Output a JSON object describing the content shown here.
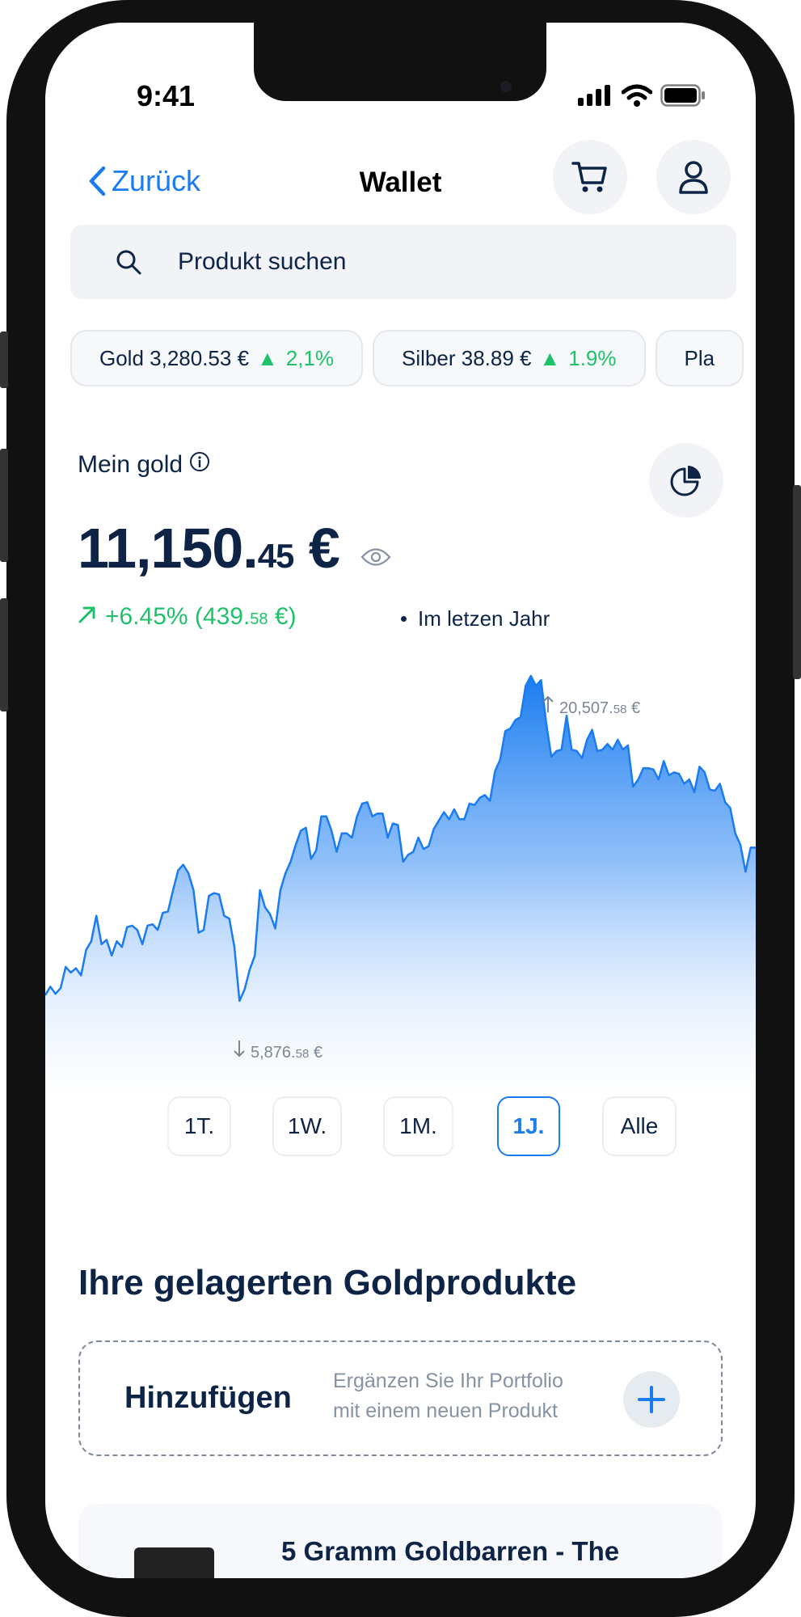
{
  "status_bar": {
    "time": "9:41"
  },
  "nav": {
    "back_label": "Zurück",
    "title": "Wallet",
    "cart_icon": "cart-icon",
    "profile_icon": "user-icon"
  },
  "search": {
    "placeholder": "Produkt suchen",
    "value": ""
  },
  "tickers": [
    {
      "label": "Gold 3,280.53 €",
      "change": "2,1%"
    },
    {
      "label": "Silber 38.89 €",
      "change": "1.9%"
    },
    {
      "label": "Pla"
    }
  ],
  "wallet": {
    "label": "Mein gold",
    "value_main": "11,150.",
    "value_cents": "45",
    "value_currency": " €",
    "change_pct": "+6.45% (439.",
    "change_cents": "58",
    "change_tail": " €)",
    "period": "Im letzen Jahr"
  },
  "colors": {
    "navy": "#0d2447",
    "green": "#1fc26b",
    "blue": "#1a7cf0"
  },
  "chart_data": {
    "type": "area",
    "max_label": {
      "main": "20,507.",
      "cents": "58",
      "currency": " €"
    },
    "min_label": {
      "main": "5,876.",
      "cents": "58",
      "currency": " €"
    },
    "ylim": [
      5876.58,
      20507.58
    ],
    "values": [
      6132,
      6516,
      6196,
      6452,
      7410,
      7155,
      7347,
      7027,
      8177,
      8561,
      9711,
      8433,
      8625,
      7922,
      8561,
      8305,
      9200,
      9264,
      9072,
      8433,
      9264,
      9328,
      9072,
      9839,
      9903,
      10861,
      11756,
      12011,
      11628,
      10861,
      8944,
      9072,
      10606,
      10733,
      10669,
      9711,
      9583,
      8305,
      5877,
      6388,
      7283,
      7922,
      10861,
      10094,
      9775,
      9136,
      10861,
      11628,
      12139,
      12906,
      13545,
      13673,
      12267,
      12650,
      14184,
      14184,
      13545,
      12587,
      13417,
      13417,
      13226,
      14184,
      14759,
      14823,
      14184,
      14312,
      14312,
      13226,
      13865,
      13801,
      12139,
      12458,
      12587,
      13226,
      12714,
      12842,
      13609,
      13992,
      14376,
      14056,
      14503,
      14056,
      14056,
      14759,
      14695,
      15014,
      15143,
      14887,
      16229,
      16740,
      18018,
      18146,
      18529,
      18657,
      20063,
      20508,
      20063,
      20318,
      18401,
      16868,
      17123,
      17187,
      18721,
      17187,
      17123,
      16804,
      17635,
      18082,
      17123,
      17187,
      17443,
      17187,
      17635,
      17187,
      17379,
      15526,
      15845,
      16356,
      16356,
      16292,
      15845,
      16676,
      16037,
      16165,
      16101,
      15654,
      15845,
      15270,
      16420,
      16165,
      15398,
      15334,
      15654,
      14823,
      14567,
      13417,
      12906,
      11692,
      12778,
      12778
    ]
  },
  "ranges": [
    {
      "label": "1T."
    },
    {
      "label": "1W."
    },
    {
      "label": "1M."
    },
    {
      "label": "1J.",
      "active": true
    },
    {
      "label": "Alle"
    }
  ],
  "products": {
    "heading": "Ihre gelagerten Goldprodukte",
    "add": {
      "title": "Hinzufügen",
      "desc_line1": "Ergänzen Sie Ihr Portfolio",
      "desc_line2": "mit einem neuen Produkt"
    },
    "items": [
      {
        "title": "5 Gramm Goldbarren - The"
      }
    ]
  }
}
